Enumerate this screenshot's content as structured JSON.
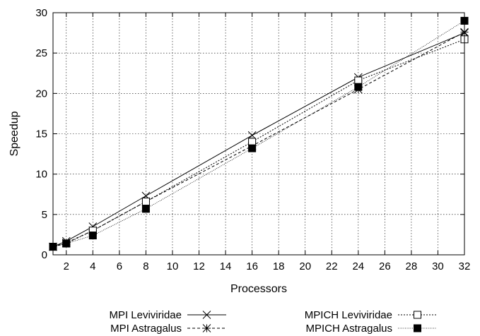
{
  "chart_data": {
    "type": "line",
    "title": "",
    "xlabel": "Processors",
    "ylabel": "Speedup",
    "xlim": [
      1,
      32
    ],
    "ylim": [
      0,
      30
    ],
    "xticks": [
      2,
      4,
      6,
      8,
      10,
      12,
      14,
      16,
      18,
      20,
      22,
      24,
      26,
      28,
      30,
      32
    ],
    "yticks": [
      0,
      5,
      10,
      15,
      20,
      25,
      30
    ],
    "grid": true,
    "legend_position": "bottom",
    "x": [
      1,
      2,
      4,
      8,
      16,
      24,
      32
    ],
    "series": [
      {
        "name": "MPI Leviviridae",
        "values": [
          1.0,
          1.7,
          3.5,
          7.3,
          14.8,
          22.0,
          27.5
        ],
        "line": "solid",
        "marker": "x",
        "color": "#000000"
      },
      {
        "name": "MPI Astragalus",
        "values": [
          1.0,
          1.5,
          3.0,
          6.6,
          13.5,
          20.5,
          27.6
        ],
        "line": "dashed",
        "marker": "star",
        "color": "#000000"
      },
      {
        "name": "MPICH Leviviridae",
        "values": [
          1.0,
          1.4,
          3.0,
          6.6,
          14.0,
          21.6,
          26.7
        ],
        "line": "dotted",
        "marker": "open-square",
        "color": "#000000"
      },
      {
        "name": "MPICH Astragalus",
        "values": [
          1.0,
          1.4,
          2.4,
          5.7,
          13.2,
          20.8,
          29.0
        ],
        "line": "fine-dotted",
        "marker": "filled-square",
        "color": "#000000"
      }
    ]
  }
}
